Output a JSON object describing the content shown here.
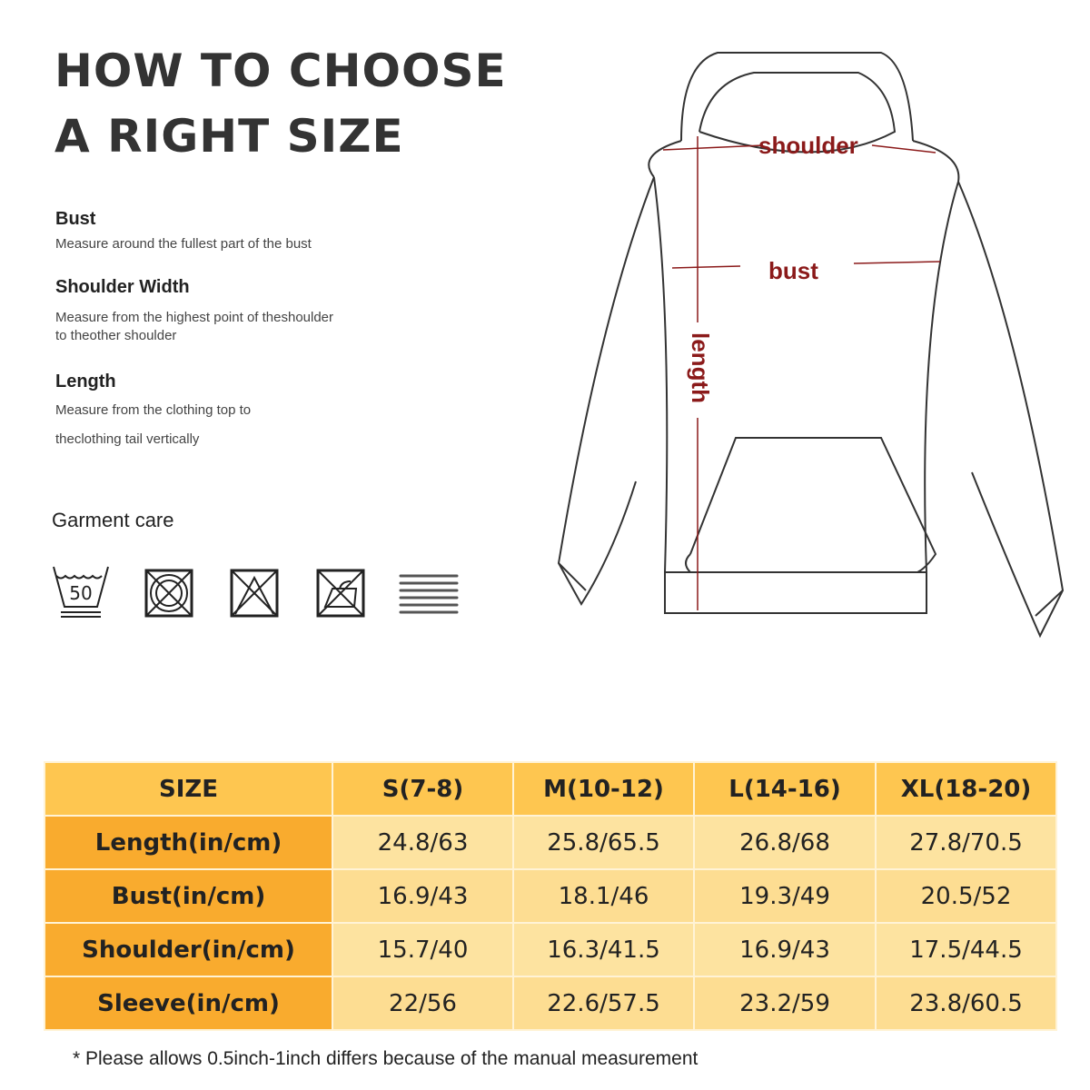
{
  "title": {
    "line1": "HOW TO CHOOSE",
    "line2": "A RIGHT SIZE"
  },
  "guide": [
    {
      "heading": "Bust",
      "desc": "Measure around the fullest part of the bust"
    },
    {
      "heading": "Shoulder Width",
      "desc": "Measure from the highest point of theshoulder",
      "desc2": "to theother shoulder"
    },
    {
      "heading": "Length",
      "desc": "Measure from the clothing top to",
      "desc2": "theclothing tail vertically"
    }
  ],
  "care": {
    "label": "Garment care",
    "icons": [
      "wash-50-icon",
      "no-tumble-dry-icon",
      "no-bleach-icon",
      "no-iron-icon",
      "dry-flat-icon"
    ],
    "wash_temp": "50"
  },
  "diagram": {
    "shoulder": "shoulder",
    "bust": "bust",
    "length": "length",
    "label_color": "#8b1a1a"
  },
  "table": {
    "headers": [
      "SIZE",
      "S(7-8)",
      "M(10-12)",
      "L(14-16)",
      "XL(18-20)"
    ],
    "rows": [
      [
        "Length(in/cm)",
        "24.8/63",
        "25.8/65.5",
        "26.8/68",
        "27.8/70.5"
      ],
      [
        "Bust(in/cm)",
        "16.9/43",
        "18.1/46",
        "19.3/49",
        "20.5/52"
      ],
      [
        "Shoulder(in/cm)",
        "15.7/40",
        "16.3/41.5",
        "16.9/43",
        "17.5/44.5"
      ],
      [
        "Sleeve(in/cm)",
        "22/56",
        "22.6/57.5",
        "23.2/59",
        "23.8/60.5"
      ]
    ],
    "colors": {
      "header": "#fec650",
      "row_header": "#f9ab2e",
      "cell": "#fde3a0"
    }
  },
  "note": "* Please  allows 0.5inch-1inch differs because  of  the manual measurement"
}
